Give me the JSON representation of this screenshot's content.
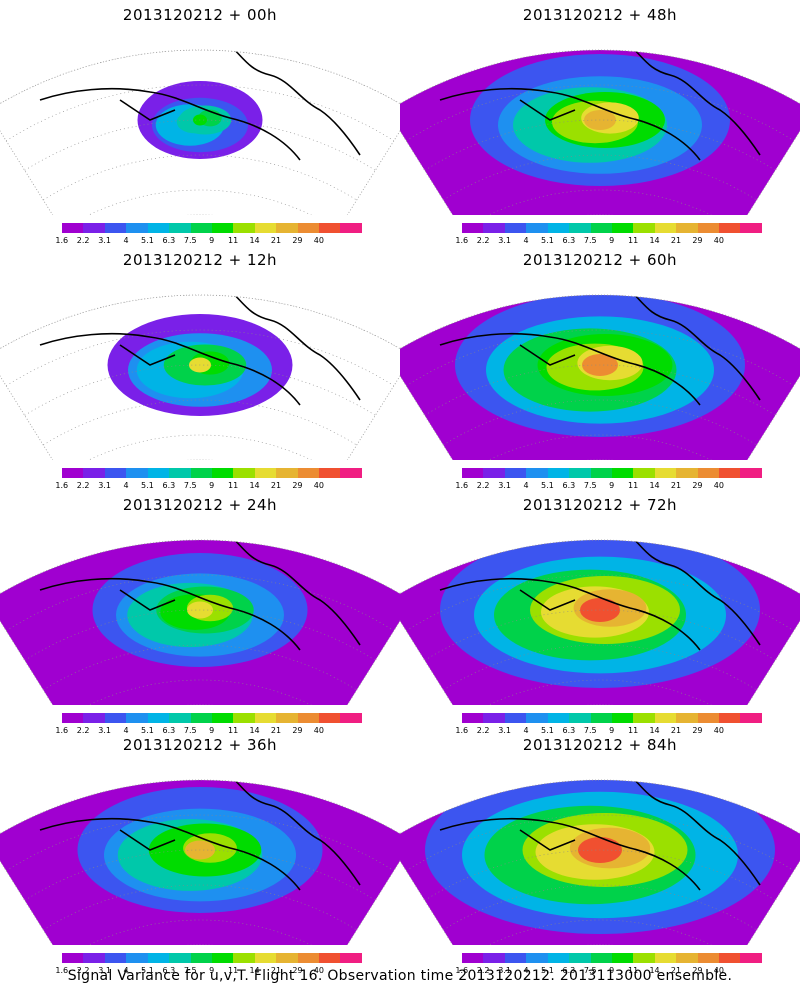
{
  "caption": "Signal Variance for u,v,T. Flight 16. Observation time 2013120212. 2013113000 ensemble.",
  "colorbar": {
    "labels": [
      "1.6",
      "2.2",
      "3.1",
      "4",
      "5.1",
      "6.3",
      "7.5",
      "9",
      "11",
      "14",
      "21",
      "29",
      "40"
    ],
    "colors": [
      "#a000d0",
      "#7a20e8",
      "#3c55f0",
      "#1e90f0",
      "#00b4e6",
      "#00c8aa",
      "#00d24a",
      "#00dc00",
      "#9be000",
      "#e6dc32",
      "#e6b432",
      "#ec8c32",
      "#f05030",
      "#f01e82"
    ]
  },
  "panels": [
    {
      "id": "00h",
      "title": "2013120212 + 00h",
      "intensity": 0.15
    },
    {
      "id": "48h",
      "title": "2013120212 + 48h",
      "intensity": 0.6
    },
    {
      "id": "12h",
      "title": "2013120212 + 12h",
      "intensity": 0.35
    },
    {
      "id": "60h",
      "title": "2013120212 + 60h",
      "intensity": 0.7
    },
    {
      "id": "24h",
      "title": "2013120212 + 24h",
      "intensity": 0.45
    },
    {
      "id": "72h",
      "title": "2013120212 + 72h",
      "intensity": 0.8
    },
    {
      "id": "36h",
      "title": "2013120212 + 36h",
      "intensity": 0.55
    },
    {
      "id": "84h",
      "title": "2013120212 + 84h",
      "intensity": 0.9
    }
  ]
}
